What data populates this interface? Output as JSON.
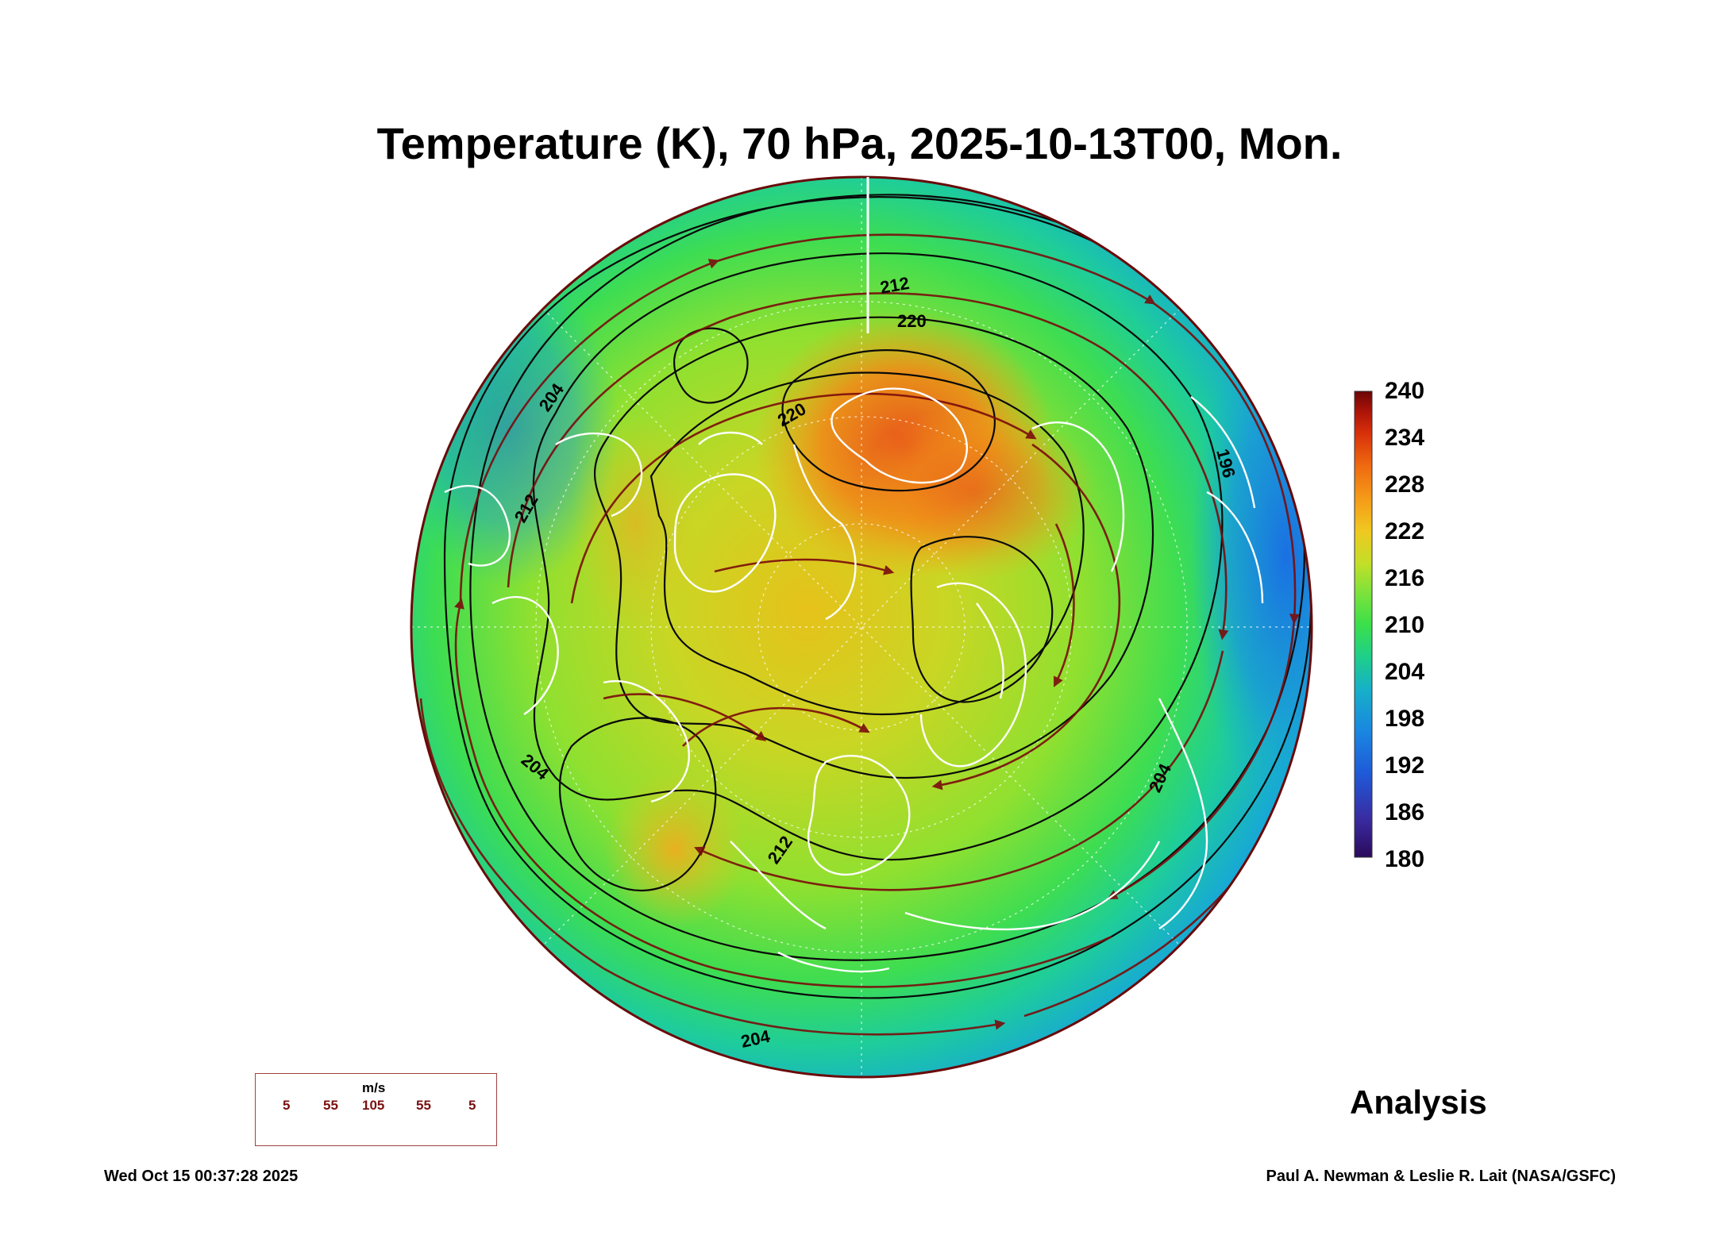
{
  "title": "Temperature (K), 70 hPa, 2025-10-13T00, Mon.",
  "colorbar": {
    "labels": [
      "240",
      "234",
      "228",
      "222",
      "216",
      "210",
      "204",
      "198",
      "192",
      "186",
      "180"
    ],
    "min": 180,
    "max": 240,
    "colors": [
      "#2a0a5a",
      "#3a2aa0",
      "#1f5ad8",
      "#1a86e0",
      "#16b0c8",
      "#1ecf8a",
      "#3be04a",
      "#7fe23a",
      "#c2df28",
      "#f0c820",
      "#f59a18",
      "#ef6a10",
      "#d8300a",
      "#a81208",
      "#6a0606"
    ]
  },
  "contour_labels": [
    "212",
    "220",
    "220",
    "204",
    "212",
    "196",
    "204",
    "204",
    "212",
    "204"
  ],
  "wind_legend": {
    "unit": "m/s",
    "speeds": [
      "5",
      "55",
      "105",
      "55",
      "5"
    ]
  },
  "analysis_label": "Analysis",
  "timestamp": "Wed Oct 15 00:37:28 2025",
  "credit": "Paul A. Newman & Leslie R. Lait (NASA/GSFC)"
}
